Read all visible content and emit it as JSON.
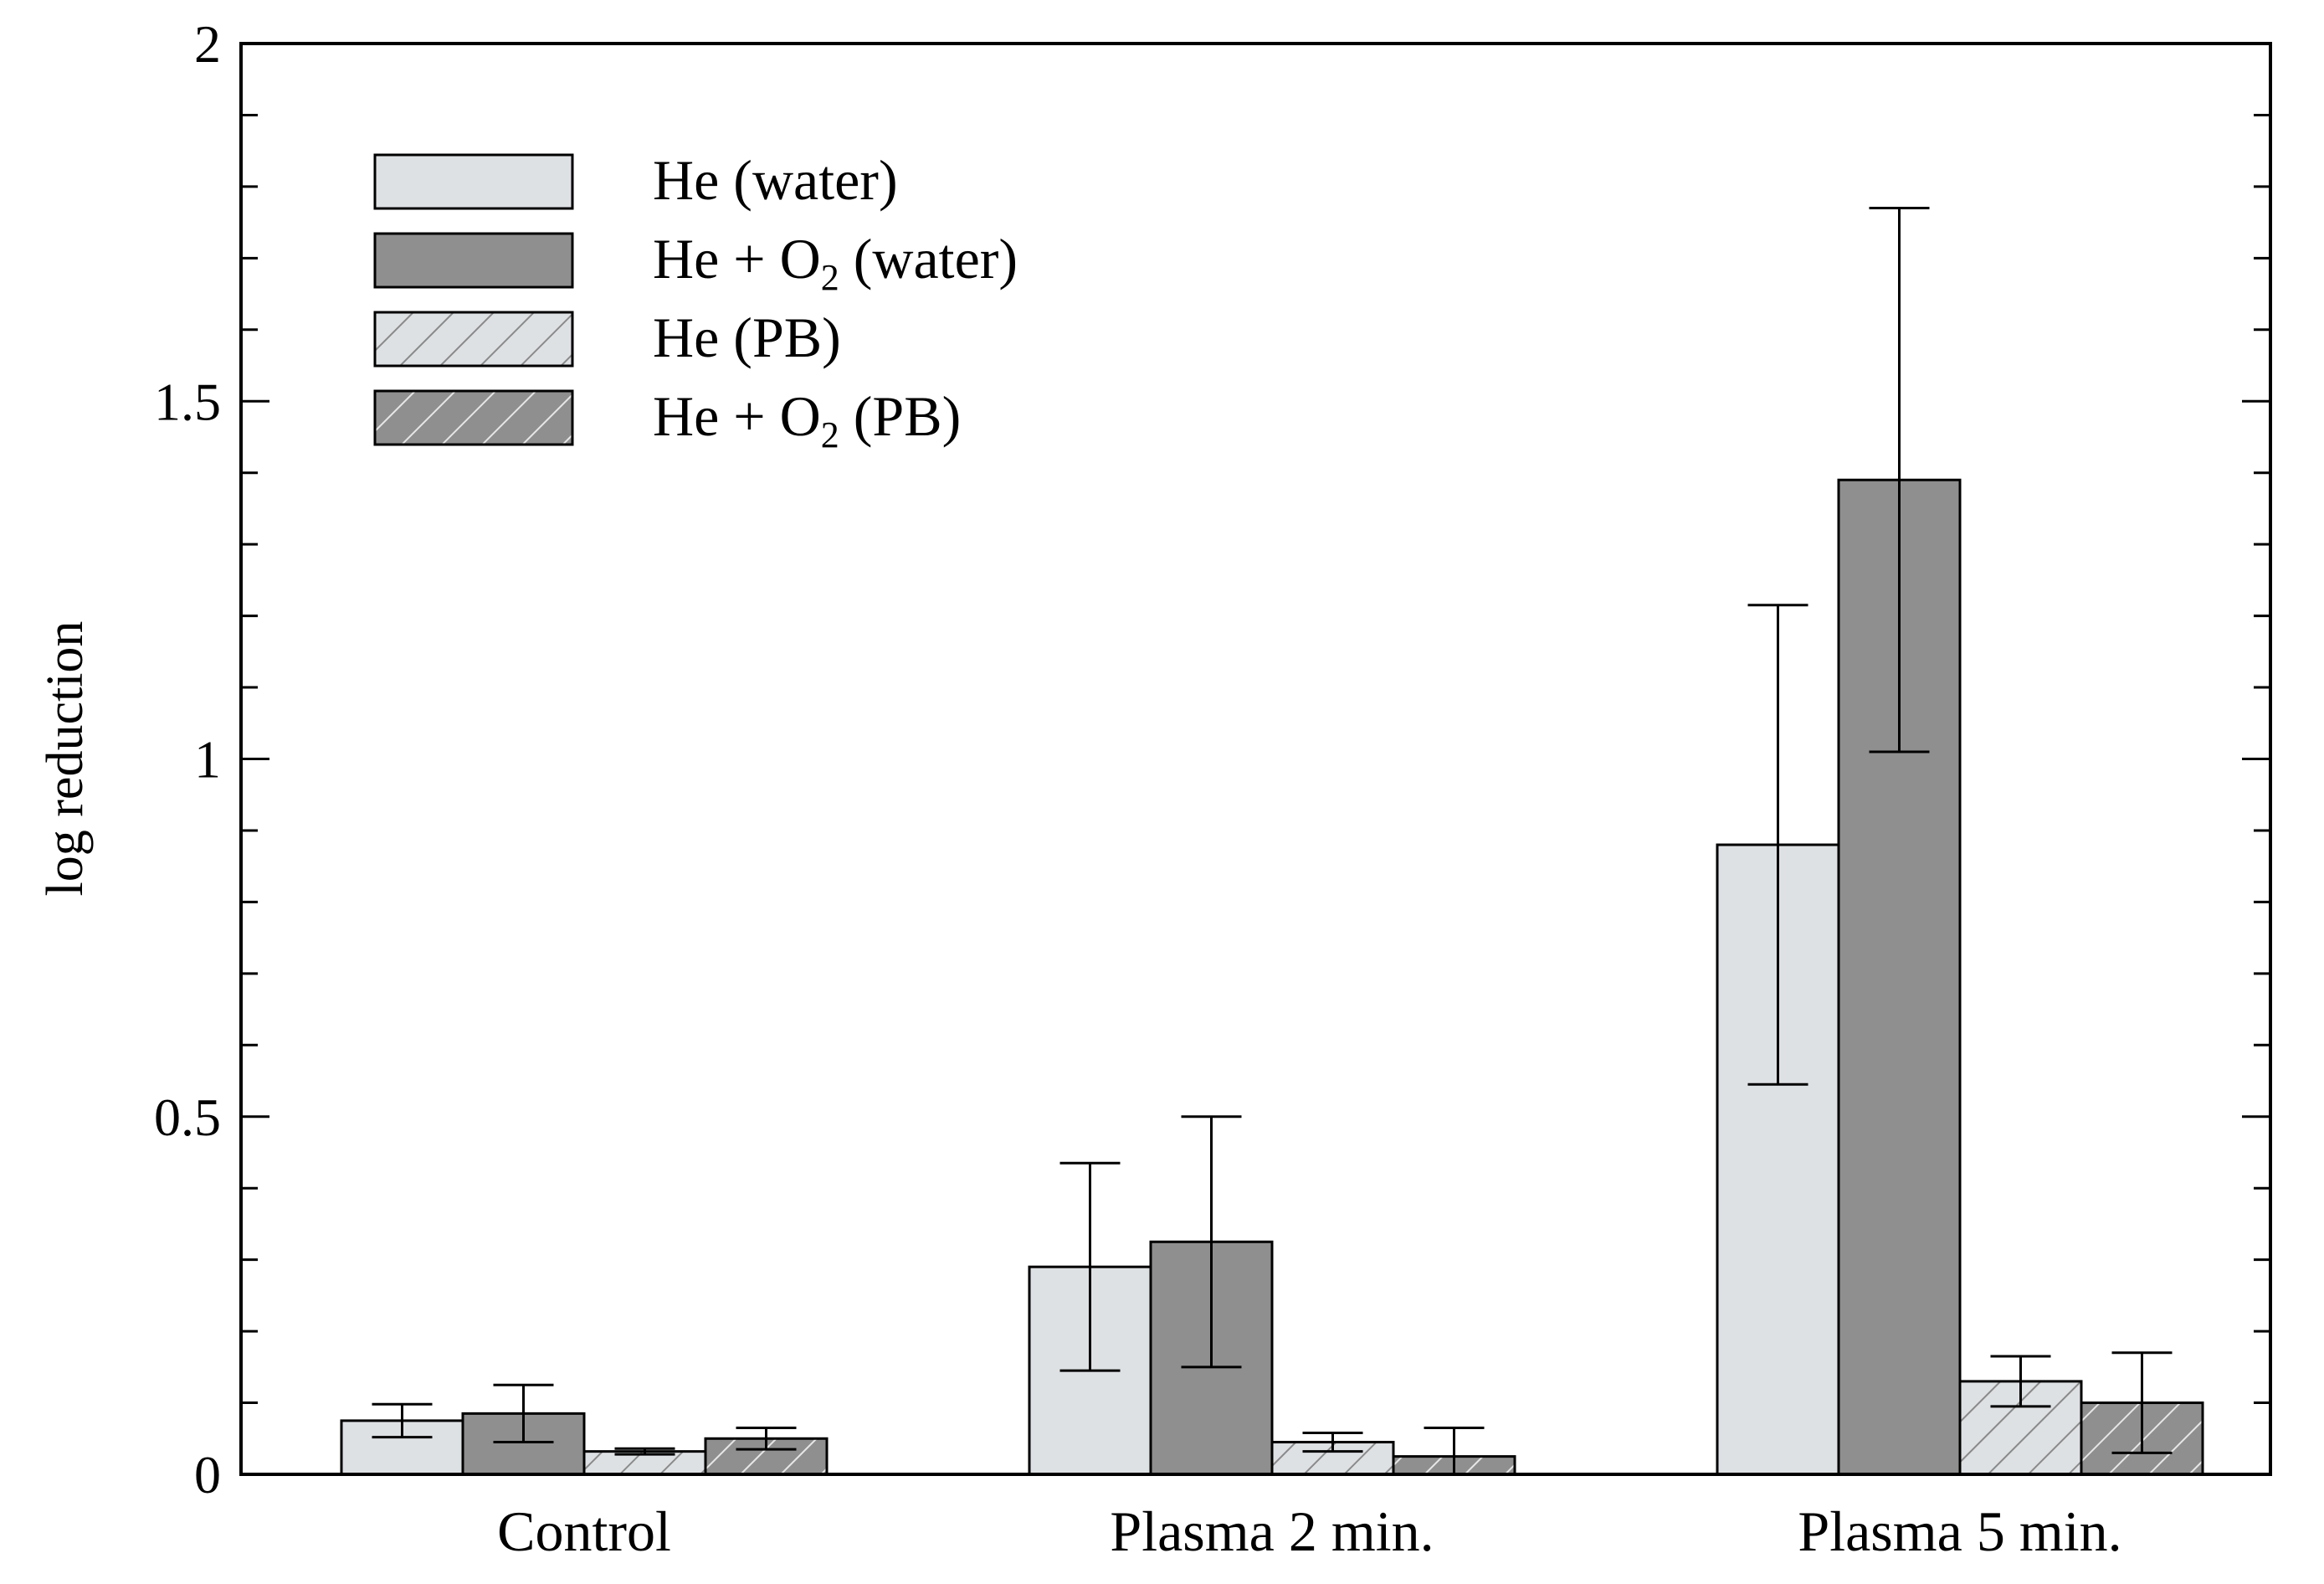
{
  "chart_data": {
    "type": "bar",
    "title": "",
    "xlabel": "",
    "ylabel": "log reduction",
    "ylim": [
      0,
      2
    ],
    "yticks": [
      {
        "value": 0,
        "label": "0"
      },
      {
        "value": 0.5,
        "label": "0.5"
      },
      {
        "value": 1,
        "label": "1"
      },
      {
        "value": 1.5,
        "label": "1.5"
      },
      {
        "value": 2,
        "label": "2"
      }
    ],
    "grid": false,
    "legend_placement": "top-left",
    "categories": [
      "Control",
      "Plasma 2 min.",
      "Plasma 5 min."
    ],
    "series": [
      {
        "name": "He (water)",
        "legend_main": "He",
        "legend_sub": "",
        "legend_suffix": " (water)",
        "color": "#dee1e4",
        "hatched": false,
        "values": [
          0.075,
          0.29,
          0.88
        ],
        "errors": [
          0.023,
          0.145,
          0.335
        ]
      },
      {
        "name": "He + O2 (water)",
        "legend_main": "He + O",
        "legend_sub": "2",
        "legend_suffix": " (water)",
        "color": "#8f8f8f",
        "hatched": false,
        "values": [
          0.085,
          0.325,
          1.39
        ],
        "errors": [
          0.04,
          0.175,
          0.38
        ]
      },
      {
        "name": "He (PB)",
        "legend_main": "He",
        "legend_sub": "",
        "legend_suffix": " (PB)",
        "color": "#dee1e4",
        "hatched": true,
        "values": [
          0.032,
          0.045,
          0.13
        ],
        "errors": [
          0.004,
          0.013,
          0.035
        ]
      },
      {
        "name": "He + O2 (PB)",
        "legend_main": "He + O",
        "legend_sub": "2",
        "legend_suffix": " (PB)",
        "color": "#8f8f8f",
        "hatched": true,
        "values": [
          0.05,
          0.025,
          0.1
        ],
        "errors": [
          0.015,
          0.04,
          0.07
        ]
      }
    ]
  }
}
